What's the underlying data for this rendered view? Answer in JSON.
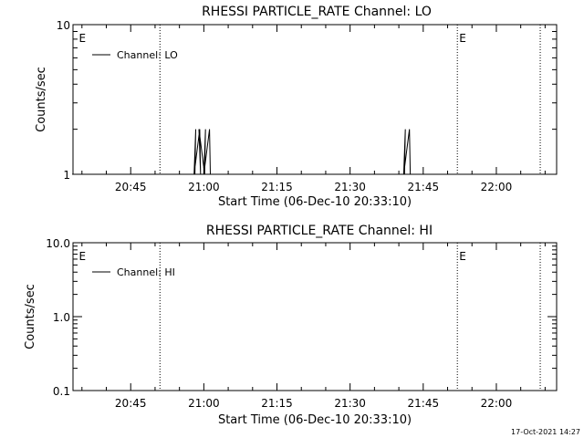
{
  "timestamp": "17-Oct-2021 14:27",
  "chart_data": [
    {
      "type": "line",
      "title": "RHESSI PARTICLE_RATE Channel: LO",
      "xlabel": "Start Time (06-Dec-10 20:33:10)",
      "ylabel": "Counts/sec",
      "y_scale": "log",
      "ylim": [
        1,
        10
      ],
      "y_ticks": [
        {
          "v": 1,
          "label": "1"
        },
        {
          "v": 10,
          "label": "10"
        }
      ],
      "x_tick_labels": [
        "20:45",
        "21:00",
        "21:15",
        "21:30",
        "21:45",
        "22:00"
      ],
      "event_lines": [
        "20:51",
        "21:52",
        "22:09"
      ],
      "event_markers": [
        {
          "at": "20:34",
          "label": "E"
        },
        {
          "at": "21:52",
          "label": "E"
        }
      ],
      "grid": false,
      "legend_position": "top-left",
      "series": [
        {
          "name": "Channel: LO",
          "color": "#000000",
          "x": [
            "20:33",
            "20:58",
            "20:58",
            "20:58",
            "20:59",
            "20:59",
            "20:59",
            "21:00",
            "21:00",
            "21:00",
            "21:01",
            "21:01",
            "21:01",
            "21:41",
            "21:41",
            "21:41",
            "21:42",
            "21:42",
            "21:42",
            "22:12"
          ],
          "y": [
            1,
            1,
            2,
            1,
            2,
            1,
            2,
            1,
            2,
            1,
            2,
            1,
            1,
            1,
            2,
            1,
            2,
            1,
            1,
            1
          ]
        }
      ]
    },
    {
      "type": "line",
      "title": "RHESSI PARTICLE_RATE Channel: HI",
      "xlabel": "Start Time (06-Dec-10 20:33:10)",
      "ylabel": "Counts/sec",
      "y_scale": "log",
      "ylim": [
        0.1,
        10
      ],
      "y_ticks": [
        {
          "v": 0.1,
          "label": "0.1"
        },
        {
          "v": 1,
          "label": "1.0"
        },
        {
          "v": 10,
          "label": "10.0"
        }
      ],
      "x_tick_labels": [
        "20:45",
        "21:00",
        "21:15",
        "21:30",
        "21:45",
        "22:00"
      ],
      "event_lines": [
        "20:51",
        "21:52",
        "22:09"
      ],
      "event_markers": [
        {
          "at": "20:34",
          "label": "E"
        },
        {
          "at": "21:52",
          "label": "E"
        }
      ],
      "grid": false,
      "legend_position": "top-left",
      "series": [
        {
          "name": "Channel: HI",
          "color": "#000000",
          "x": [],
          "y": []
        }
      ]
    }
  ]
}
